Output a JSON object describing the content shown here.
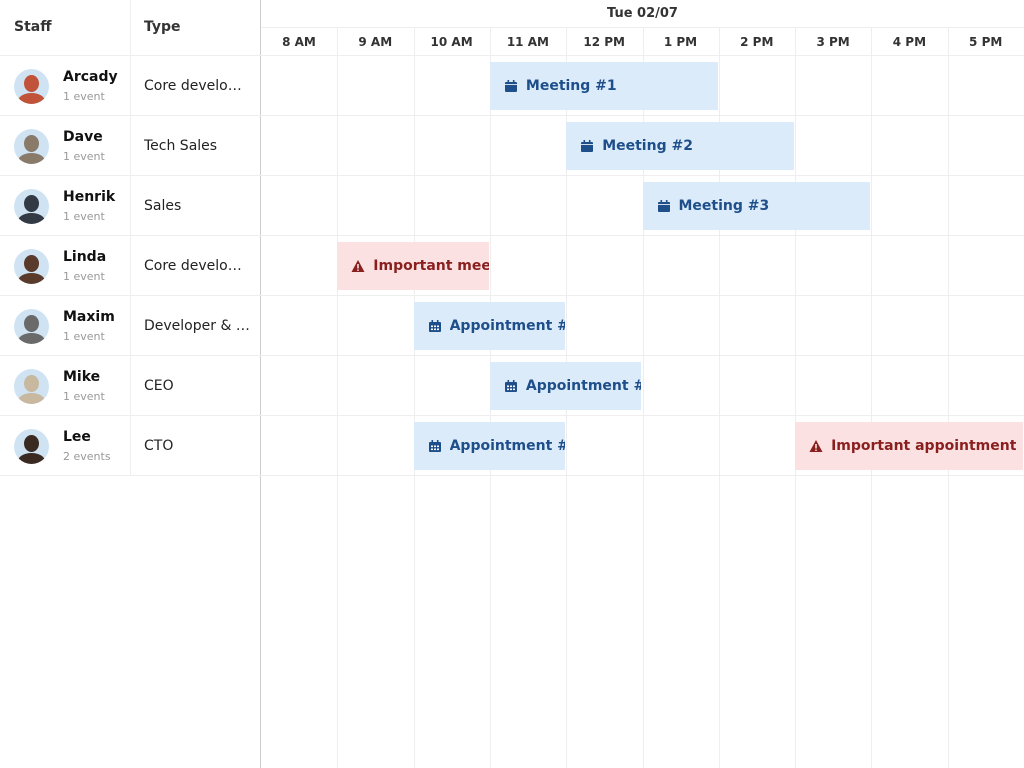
{
  "header": {
    "staff": "Staff",
    "type": "Type",
    "date": "Tue 02/07",
    "hours": [
      "8 AM",
      "9 AM",
      "10 AM",
      "11 AM",
      "12 PM",
      "1 PM",
      "2 PM",
      "3 PM",
      "4 PM",
      "5 PM"
    ]
  },
  "staff": [
    {
      "name": "Arcady",
      "events": "1 event",
      "type": "Core develo…",
      "avatar": "#c0533a",
      "bookings": [
        {
          "name": "Meeting #1",
          "start": 3,
          "hours": 3,
          "color": "#dcebfa",
          "text_color": "#1e4f8a",
          "icon": "calendar"
        }
      ]
    },
    {
      "name": "Dave",
      "events": "1 event",
      "type": "Tech Sales",
      "avatar": "#8a7a6a",
      "bookings": [
        {
          "name": "Meeting #2",
          "start": 4,
          "hours": 3,
          "color": "#dcebfa",
          "text_color": "#1e4f8a",
          "icon": "calendar"
        }
      ]
    },
    {
      "name": "Henrik",
      "events": "1 event",
      "type": "Sales",
      "avatar": "#333a44",
      "bookings": [
        {
          "name": "Meeting #3",
          "start": 5,
          "hours": 3,
          "color": "#dcebfa",
          "text_color": "#1e4f8a",
          "icon": "calendar"
        }
      ]
    },
    {
      "name": "Linda",
      "events": "1 event",
      "type": "Core develo…",
      "avatar": "#5a3a2a",
      "bookings": [
        {
          "name": "Important mee",
          "start": 1,
          "hours": 2,
          "color": "#fbe1e1",
          "text_color": "#8a1f1f",
          "icon": "warning"
        }
      ]
    },
    {
      "name": "Maxim",
      "events": "1 event",
      "type": "Developer & …",
      "avatar": "#6a6a6a",
      "bookings": [
        {
          "name": "Appointment #",
          "start": 2,
          "hours": 2,
          "color": "#dcebfa",
          "text_color": "#1e4f8a",
          "icon": "grid"
        }
      ]
    },
    {
      "name": "Mike",
      "events": "1 event",
      "type": "CEO",
      "avatar": "#c8b8a0",
      "bookings": [
        {
          "name": "Appointment #",
          "start": 3,
          "hours": 2,
          "color": "#dcebfa",
          "text_color": "#1e4f8a",
          "icon": "grid"
        }
      ]
    },
    {
      "name": "Lee",
      "events": "2 events",
      "type": "CTO",
      "avatar": "#3a2a22",
      "bookings": [
        {
          "name": "Appointment #",
          "start": 2,
          "hours": 2,
          "color": "#dcebfa",
          "text_color": "#1e4f8a",
          "icon": "grid"
        },
        {
          "name": "Important appointment",
          "start": 7,
          "hours": 3,
          "color": "#fbe1e1",
          "text_color": "#8a1f1f",
          "icon": "warning"
        }
      ]
    }
  ]
}
